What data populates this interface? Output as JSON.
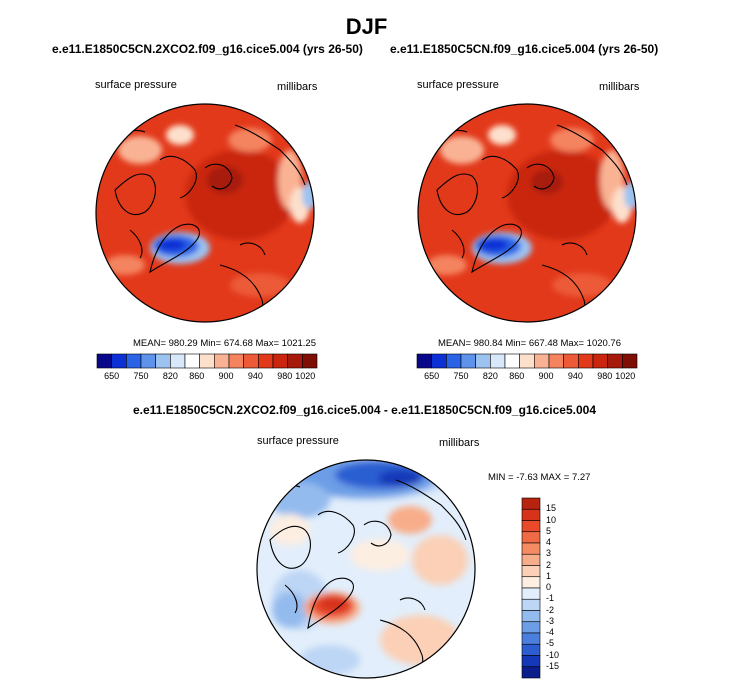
{
  "main_title": "DJF",
  "panels": [
    {
      "title": "e.e11.E1850C5CN.2XCO2.f09_g16.cice5.004 (yrs 26-50)",
      "variable": "surface pressure",
      "units": "millibars",
      "stats": "MEAN= 980.29   Min= 674.68   Max= 1021.25"
    },
    {
      "title": "e.e11.E1850C5CN.f09_g16.cice5.004 (yrs 26-50)",
      "variable": "surface pressure",
      "units": "millibars",
      "stats": "MEAN= 980.84   Min= 667.48   Max= 1020.76"
    },
    {
      "title": "e.e11.E1850C5CN.2XCO2.f09_g16.cice5.004 - e.e11.E1850C5CN.f09_g16.cice5.004",
      "variable": "surface pressure",
      "units": "millibars",
      "stats": "MIN =  -7.63  MAX =    7.27"
    }
  ],
  "abs_colorbar": {
    "labels": [
      "650",
      "750",
      "820",
      "860",
      "900",
      "940",
      "980",
      "1020"
    ],
    "colors": [
      "#08088a",
      "#0d2fd6",
      "#2a63e6",
      "#5f92ea",
      "#9cc2f0",
      "#d8e8fa",
      "#ffffff",
      "#fde0cc",
      "#f9b394",
      "#f4835e",
      "#ec5a37",
      "#e2391b",
      "#c9250f",
      "#a71a0b",
      "#7f0e07"
    ]
  },
  "diff_colorbar": {
    "labels": [
      "15",
      "10",
      "5",
      "4",
      "3",
      "2",
      "1",
      "0",
      "-1",
      "-2",
      "-3",
      "-4",
      "-5",
      "-10",
      "-15"
    ],
    "colors": [
      "#b8230f",
      "#d7321a",
      "#e84a2a",
      "#f06a45",
      "#f48b63",
      "#f8ad8a",
      "#fbd0b6",
      "#fdeee2",
      "#e2eefb",
      "#bdd6f5",
      "#94bbee",
      "#6c9de6",
      "#4a7fde",
      "#2c5ed2",
      "#1438b8",
      "#0a1f8c"
    ]
  }
}
